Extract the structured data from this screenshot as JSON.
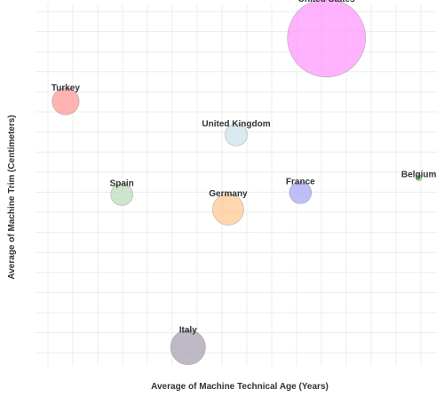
{
  "chart_data": {
    "type": "scatter",
    "subtype": "bubble",
    "title": "",
    "xlabel": "Average of Machine Technical Age (Years)",
    "ylabel": "Average of Machine Trim (Centimeters)",
    "grid": true,
    "legend": "none",
    "tick_labels_shown": false,
    "points": [
      {
        "label": "United States",
        "x": 7.25,
        "y": 8.8,
        "size": 100,
        "color": "#ff99ff"
      },
      {
        "label": "Turkey",
        "x": 0.75,
        "y": 7.1,
        "size": 12,
        "color": "#ff9999"
      },
      {
        "label": "United Kingdom",
        "x": 5.0,
        "y": 6.2,
        "size": 8,
        "color": "#cde3ec"
      },
      {
        "label": "Spain",
        "x": 2.15,
        "y": 4.6,
        "size": 8,
        "color": "#bedcbe"
      },
      {
        "label": "Germany",
        "x": 4.8,
        "y": 4.2,
        "size": 16,
        "color": "#ffc993"
      },
      {
        "label": "France",
        "x": 6.6,
        "y": 4.65,
        "size": 8,
        "color": "#a8a8f5"
      },
      {
        "label": "Belgium",
        "x": 9.55,
        "y": 5.05,
        "size": 0.1,
        "color": "#66cc66"
      },
      {
        "label": "Italy",
        "x": 3.8,
        "y": 0.5,
        "size": 20,
        "color": "#a8a2b2"
      }
    ]
  }
}
